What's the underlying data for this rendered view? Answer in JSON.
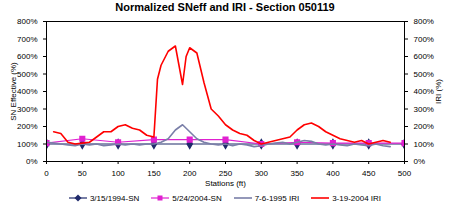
{
  "chart_data": {
    "type": "line",
    "title": "Normalized SNeff and IRI - Section 050119",
    "x_label": "Stations (ft)",
    "y_label": "SN Effective (%)",
    "y2_label": "IRI (%)",
    "xlim": [
      0,
      500
    ],
    "xticks": [
      0,
      50,
      100,
      150,
      200,
      250,
      300,
      350,
      400,
      450,
      500
    ],
    "ylim": [
      0,
      800
    ],
    "yticks": [
      {
        "value": 0,
        "label": "0%"
      },
      {
        "value": 100,
        "label": "100%"
      },
      {
        "value": 200,
        "label": "200%"
      },
      {
        "value": 300,
        "label": "300%"
      },
      {
        "value": 400,
        "label": "400%"
      },
      {
        "value": 500,
        "label": "500%"
      },
      {
        "value": 600,
        "label": "600%"
      },
      {
        "value": 700,
        "label": "700%"
      },
      {
        "value": 800,
        "label": "800%"
      }
    ],
    "y2lim": [
      0,
      800
    ],
    "y2ticks": [
      {
        "value": 0,
        "label": "0%"
      },
      {
        "value": 100,
        "label": "100%"
      },
      {
        "value": 200,
        "label": "200%"
      },
      {
        "value": 300,
        "label": "300%"
      },
      {
        "value": 400,
        "label": "400%"
      },
      {
        "value": 500,
        "label": "500%"
      },
      {
        "value": 600,
        "label": "600%"
      },
      {
        "value": 700,
        "label": "700%"
      },
      {
        "value": 800,
        "label": "800%"
      }
    ],
    "grid": false,
    "legend": "bottom",
    "series": [
      {
        "name": "3/15/1994-SN",
        "color": "#1f2a6b",
        "marker": "diamond",
        "line_style": "solid",
        "x": [
          0,
          50,
          100,
          150,
          200,
          250,
          300,
          350,
          400,
          450,
          500
        ],
        "values": [
          100,
          100,
          100,
          100,
          100,
          100,
          100,
          100,
          100,
          100,
          100
        ]
      },
      {
        "name": "5/24/2004-SN",
        "color": "#e020d0",
        "marker": "square",
        "line_style": "solid",
        "x": [
          0,
          50,
          100,
          150,
          200,
          250,
          300,
          350,
          400,
          450,
          500
        ],
        "values": [
          105,
          130,
          110,
          125,
          125,
          125,
          100,
          110,
          105,
          105,
          105
        ]
      },
      {
        "name": "7-6-1995 IRI",
        "color": "#7a7fa8",
        "marker": "none",
        "line_style": "solid",
        "axis": "y2",
        "x": [
          0,
          10,
          20,
          30,
          40,
          50,
          60,
          70,
          80,
          90,
          100,
          110,
          120,
          130,
          140,
          150,
          160,
          170,
          180,
          190,
          200,
          210,
          220,
          230,
          240,
          250,
          260,
          270,
          280,
          290,
          300,
          310,
          320,
          330,
          340,
          350,
          360,
          370,
          380,
          390,
          400,
          410,
          420,
          430,
          440,
          450,
          460,
          470,
          480
        ],
        "values": [
          110,
          105,
          100,
          95,
          90,
          100,
          95,
          100,
          90,
          95,
          100,
          95,
          100,
          95,
          100,
          100,
          110,
          130,
          180,
          210,
          170,
          130,
          110,
          100,
          95,
          100,
          90,
          100,
          95,
          85,
          90,
          100,
          105,
          110,
          100,
          110,
          120,
          115,
          100,
          95,
          100,
          95,
          90,
          100,
          95,
          90,
          100,
          90,
          85
        ]
      },
      {
        "name": "3-19-2004 IRI",
        "color": "#ff0000",
        "marker": "none",
        "line_style": "solid",
        "axis": "y2",
        "x": [
          10,
          20,
          30,
          40,
          50,
          60,
          70,
          80,
          90,
          100,
          110,
          120,
          130,
          140,
          150,
          155,
          160,
          170,
          180,
          185,
          190,
          195,
          200,
          210,
          220,
          230,
          240,
          250,
          260,
          270,
          280,
          290,
          300,
          310,
          320,
          330,
          340,
          350,
          360,
          370,
          380,
          390,
          400,
          410,
          420,
          430,
          440,
          450,
          460,
          470,
          480
        ],
        "values": [
          170,
          160,
          110,
          100,
          105,
          110,
          140,
          170,
          170,
          200,
          210,
          190,
          180,
          150,
          140,
          470,
          550,
          630,
          660,
          550,
          440,
          600,
          650,
          620,
          450,
          300,
          260,
          210,
          180,
          160,
          150,
          120,
          100,
          110,
          120,
          130,
          140,
          180,
          210,
          220,
          200,
          170,
          150,
          130,
          120,
          110,
          120,
          100,
          110,
          120,
          110
        ]
      }
    ]
  }
}
